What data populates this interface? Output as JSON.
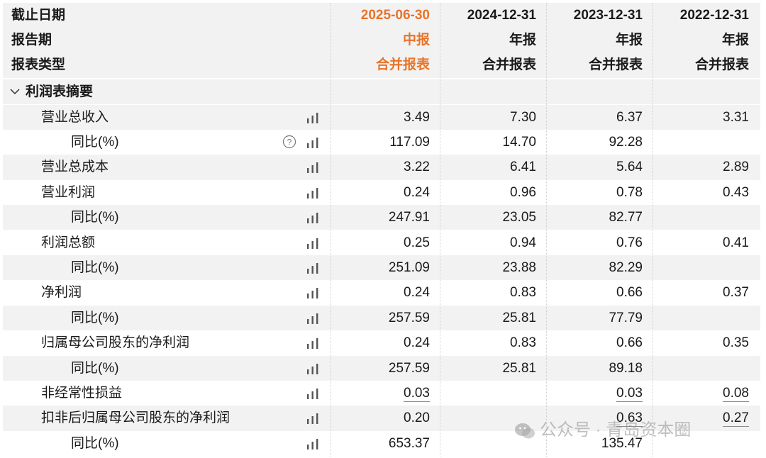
{
  "header": {
    "row_labels": [
      "截止日期",
      "报告期",
      "报表类型"
    ],
    "columns": [
      {
        "date": "2025-06-30",
        "period": "中报",
        "type": "合并报表",
        "highlight": true
      },
      {
        "date": "2024-12-31",
        "period": "年报",
        "type": "合并报表",
        "highlight": false
      },
      {
        "date": "2023-12-31",
        "period": "年报",
        "type": "合并报表",
        "highlight": false
      },
      {
        "date": "2022-12-31",
        "period": "年报",
        "type": "合并报表",
        "highlight": false
      }
    ]
  },
  "section": {
    "chevron": "chevron-down-icon",
    "title": "利润表摘要"
  },
  "rows": [
    {
      "label": "营业总收入",
      "indent": 1,
      "help": false,
      "values": [
        "3.49",
        "7.30",
        "6.37",
        "3.31"
      ],
      "underline": [
        false,
        false,
        false,
        false
      ]
    },
    {
      "label": "同比(%)",
      "indent": 2,
      "help": true,
      "values": [
        "117.09",
        "14.70",
        "92.28",
        ""
      ],
      "underline": [
        false,
        false,
        false,
        false
      ]
    },
    {
      "label": "营业总成本",
      "indent": 1,
      "help": false,
      "values": [
        "3.22",
        "6.41",
        "5.64",
        "2.89"
      ],
      "underline": [
        false,
        false,
        false,
        false
      ]
    },
    {
      "label": "营业利润",
      "indent": 1,
      "help": false,
      "values": [
        "0.24",
        "0.96",
        "0.78",
        "0.43"
      ],
      "underline": [
        false,
        false,
        false,
        false
      ]
    },
    {
      "label": "同比(%)",
      "indent": 2,
      "help": false,
      "values": [
        "247.91",
        "23.05",
        "82.77",
        ""
      ],
      "underline": [
        false,
        false,
        false,
        false
      ]
    },
    {
      "label": "利润总额",
      "indent": 1,
      "help": false,
      "values": [
        "0.25",
        "0.94",
        "0.76",
        "0.41"
      ],
      "underline": [
        false,
        false,
        false,
        false
      ]
    },
    {
      "label": "同比(%)",
      "indent": 2,
      "help": false,
      "values": [
        "251.09",
        "23.88",
        "82.29",
        ""
      ],
      "underline": [
        false,
        false,
        false,
        false
      ]
    },
    {
      "label": "净利润",
      "indent": 1,
      "help": false,
      "values": [
        "0.24",
        "0.83",
        "0.66",
        "0.37"
      ],
      "underline": [
        false,
        false,
        false,
        false
      ]
    },
    {
      "label": "同比(%)",
      "indent": 2,
      "help": false,
      "values": [
        "257.59",
        "25.81",
        "77.79",
        ""
      ],
      "underline": [
        false,
        false,
        false,
        false
      ]
    },
    {
      "label": "归属母公司股东的净利润",
      "indent": 1,
      "help": false,
      "values": [
        "0.24",
        "0.83",
        "0.66",
        "0.35"
      ],
      "underline": [
        false,
        false,
        false,
        false
      ]
    },
    {
      "label": "同比(%)",
      "indent": 2,
      "help": false,
      "values": [
        "257.59",
        "25.81",
        "89.18",
        ""
      ],
      "underline": [
        false,
        false,
        false,
        false
      ]
    },
    {
      "label": "非经常性损益",
      "indent": 1,
      "help": false,
      "values": [
        "0.03",
        "",
        "0.03",
        "0.08"
      ],
      "underline": [
        true,
        false,
        true,
        true
      ]
    },
    {
      "label": "扣非后归属母公司股东的净利润",
      "indent": 1,
      "help": false,
      "values": [
        "0.20",
        "",
        "0.63",
        "0.27"
      ],
      "underline": [
        false,
        false,
        true,
        true
      ]
    },
    {
      "label": "同比(%)",
      "indent": 2,
      "help": false,
      "values": [
        "653.37",
        "",
        "135.47",
        ""
      ],
      "underline": [
        false,
        false,
        false,
        false
      ]
    }
  ],
  "icons": {
    "chart": "bar-chart-icon",
    "help": "question-circle-icon",
    "watermark": "wechat-icon"
  },
  "watermark": "公众号 · 青岛资本圈",
  "colors": {
    "accent": "#e8742a",
    "row_stripe": "#f2f2f2"
  }
}
